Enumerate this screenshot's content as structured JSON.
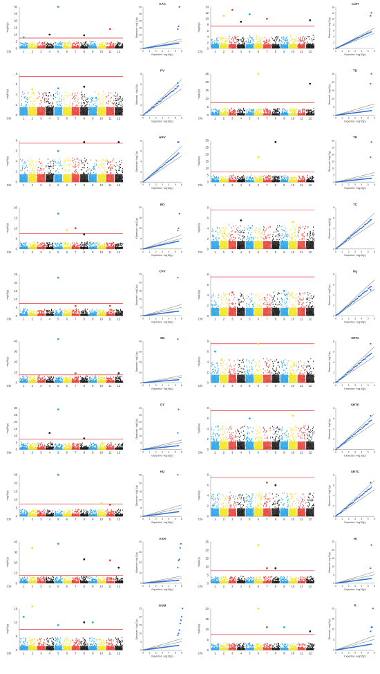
{
  "figure": {
    "chr_label": "Chr",
    "manhattan_ylabel": "−log10(p)",
    "qq_xlabel": "Expected −log10(p)",
    "qq_ylabel": "Observed −log10(p)",
    "chromosomes": [
      "1",
      "2",
      "3",
      "4",
      "5",
      "6",
      "7",
      "8",
      "9",
      "10",
      "11",
      "12"
    ],
    "chromosome_colors": [
      "#29a3e6",
      "#f3e51e",
      "#e8423a",
      "#1a1a1a"
    ],
    "threshold_color": "#e2333b",
    "qq_point_color": "#2a70d6",
    "qq_line_color": "#8c8c8c"
  },
  "chart_data": [
    {
      "type": "scatter",
      "kind": "manhattan",
      "trait": "AAC",
      "ylim": [
        0,
        30
      ],
      "yticks": [
        0,
        5,
        10,
        15,
        20,
        25,
        30
      ],
      "threshold": 7.5,
      "peaks": [
        {
          "chr": 5,
          "y": 30
        },
        {
          "chr": 8,
          "y": 9.5
        },
        {
          "chr": 11,
          "y": 14
        },
        {
          "chr": 1,
          "y": 8
        },
        {
          "chr": 4,
          "y": 10
        }
      ]
    },
    {
      "type": "scatter",
      "kind": "qq",
      "trait": "AAC",
      "xlim": [
        0,
        6
      ],
      "ylim": [
        0,
        30
      ],
      "yticks": [
        0,
        5,
        10,
        15,
        20,
        25,
        30
      ],
      "xticks": [
        0,
        1,
        2,
        3,
        4,
        5,
        6
      ],
      "tail": [
        14,
        16,
        30
      ],
      "bend": 4
    },
    {
      "type": "scatter",
      "kind": "manhattan",
      "trait": "COH",
      "ylim": [
        0,
        14
      ],
      "yticks": [
        0,
        2,
        4,
        6,
        8,
        10,
        12,
        14
      ],
      "threshold": 7.5,
      "peaks": [
        {
          "chr": 2,
          "y": 11
        },
        {
          "chr": 3,
          "y": 13
        },
        {
          "chr": 4,
          "y": 9
        },
        {
          "chr": 5,
          "y": 11.5
        },
        {
          "chr": 7,
          "y": 10
        },
        {
          "chr": 12,
          "y": 9.5
        }
      ]
    },
    {
      "type": "scatter",
      "kind": "qq",
      "trait": "COH",
      "xlim": [
        0,
        6
      ],
      "ylim": [
        0,
        14
      ],
      "yticks": [
        0,
        2,
        4,
        6,
        8,
        10,
        12,
        14
      ],
      "xticks": [
        0,
        1,
        2,
        3,
        4,
        5,
        6
      ],
      "tail": [
        11,
        12
      ],
      "bend": 6
    },
    {
      "type": "scatter",
      "kind": "manhattan",
      "trait": "PV",
      "ylim": [
        0,
        8
      ],
      "yticks": [
        0,
        2,
        4,
        6,
        8
      ],
      "threshold": 7.5,
      "peaks": [
        {
          "chr": 8,
          "y": 5.5
        },
        {
          "chr": 2,
          "y": 5
        },
        {
          "chr": 5,
          "y": 5.2
        }
      ]
    },
    {
      "type": "scatter",
      "kind": "qq",
      "trait": "PV",
      "xlim": [
        0,
        6
      ],
      "ylim": [
        0,
        8
      ],
      "yticks": [
        0,
        2,
        4,
        6,
        8
      ],
      "xticks": [
        0,
        1,
        2,
        3,
        4,
        5,
        6
      ],
      "tail": [
        6.2
      ],
      "bend": 6
    },
    {
      "type": "scatter",
      "kind": "manhattan",
      "trait": "TD",
      "ylim": [
        0,
        25
      ],
      "yticks": [
        0,
        5,
        10,
        15,
        20,
        25
      ],
      "threshold": 7.5,
      "peaks": [
        {
          "chr": 6,
          "y": 25
        },
        {
          "chr": 12,
          "y": 19
        }
      ]
    },
    {
      "type": "scatter",
      "kind": "qq",
      "trait": "TD",
      "xlim": [
        0,
        6
      ],
      "ylim": [
        0,
        25
      ],
      "yticks": [
        0,
        5,
        10,
        15,
        20,
        25
      ],
      "xticks": [
        0,
        1,
        2,
        3,
        4,
        5,
        6
      ],
      "tail": [
        19,
        25
      ],
      "bend": 3
    },
    {
      "type": "scatter",
      "kind": "manhattan",
      "trait": "HPV",
      "ylim": [
        0,
        8
      ],
      "yticks": [
        0,
        2,
        4,
        6,
        8
      ],
      "threshold": 7.5,
      "peaks": [
        {
          "chr": 8,
          "y": 7.7
        },
        {
          "chr": 12,
          "y": 7.7
        },
        {
          "chr": 5,
          "y": 6
        }
      ]
    },
    {
      "type": "scatter",
      "kind": "qq",
      "trait": "HPV",
      "xlim": [
        0,
        6
      ],
      "ylim": [
        0,
        8
      ],
      "yticks": [
        0,
        2,
        4,
        6,
        8
      ],
      "xticks": [
        0,
        1,
        2,
        3,
        4,
        5,
        6
      ],
      "tail": [
        7.7,
        7.7
      ],
      "bend": 6
    },
    {
      "type": "scatter",
      "kind": "manhattan",
      "trait": "TP",
      "ylim": [
        0,
        30
      ],
      "yticks": [
        0,
        5,
        10,
        15,
        20,
        25,
        30
      ],
      "threshold": 7.5,
      "peaks": [
        {
          "chr": 8,
          "y": 29
        },
        {
          "chr": 6,
          "y": 18
        }
      ]
    },
    {
      "type": "scatter",
      "kind": "qq",
      "trait": "TP",
      "xlim": [
        0,
        6
      ],
      "ylim": [
        0,
        30
      ],
      "yticks": [
        0,
        5,
        10,
        15,
        20,
        25,
        30
      ],
      "xticks": [
        0,
        1,
        2,
        3,
        4,
        5,
        6
      ],
      "tail": [
        18,
        29
      ],
      "bend": 3
    },
    {
      "type": "scatter",
      "kind": "manhattan",
      "trait": "BD",
      "ylim": [
        0,
        20
      ],
      "yticks": [
        0,
        5,
        10,
        15,
        20
      ],
      "threshold": 7.5,
      "peaks": [
        {
          "chr": 5,
          "y": 17
        },
        {
          "chr": 6,
          "y": 9
        },
        {
          "chr": 7,
          "y": 10
        },
        {
          "chr": 8,
          "y": 7
        }
      ]
    },
    {
      "type": "scatter",
      "kind": "qq",
      "trait": "BD",
      "xlim": [
        0,
        6
      ],
      "ylim": [
        0,
        20
      ],
      "yticks": [
        0,
        5,
        10,
        15,
        20
      ],
      "xticks": [
        0,
        1,
        2,
        3,
        4,
        5,
        6
      ],
      "tail": [
        9,
        10,
        17
      ],
      "bend": 4
    },
    {
      "type": "scatter",
      "kind": "manhattan",
      "trait": "TC",
      "ylim": [
        0,
        8
      ],
      "yticks": [
        0,
        2,
        4,
        6,
        8
      ],
      "threshold": 7.5,
      "peaks": [
        {
          "chr": 4,
          "y": 5.5
        },
        {
          "chr": 10,
          "y": 5.2
        }
      ]
    },
    {
      "type": "scatter",
      "kind": "qq",
      "trait": "TC",
      "xlim": [
        0,
        6
      ],
      "ylim": [
        0,
        8
      ],
      "yticks": [
        0,
        2,
        4,
        6,
        8
      ],
      "xticks": [
        0,
        1,
        2,
        3,
        4,
        5,
        6
      ],
      "tail": [
        5.6
      ],
      "bend": 6
    },
    {
      "type": "scatter",
      "kind": "manhattan",
      "trait": "CPV",
      "ylim": [
        0,
        25
      ],
      "yticks": [
        0,
        5,
        10,
        15,
        20,
        25
      ],
      "threshold": 7.5,
      "peaks": [
        {
          "chr": 5,
          "y": 23
        },
        {
          "chr": 7,
          "y": 6
        },
        {
          "chr": 11,
          "y": 6
        }
      ]
    },
    {
      "type": "scatter",
      "kind": "qq",
      "trait": "CPV",
      "xlim": [
        0,
        6
      ],
      "ylim": [
        0,
        25
      ],
      "yticks": [
        0,
        5,
        10,
        15,
        20,
        25
      ],
      "xticks": [
        0,
        1,
        2,
        3,
        4,
        5,
        6
      ],
      "tail": [
        23
      ],
      "bend": 3
    },
    {
      "type": "scatter",
      "kind": "manhattan",
      "trait": "Hg",
      "ylim": [
        0,
        8
      ],
      "yticks": [
        0,
        2,
        4,
        6,
        8
      ],
      "threshold": 7.5,
      "peaks": [
        {
          "chr": 3,
          "y": 4.5
        },
        {
          "chr": 9,
          "y": 4.8
        }
      ]
    },
    {
      "type": "scatter",
      "kind": "qq",
      "trait": "Hg",
      "xlim": [
        0,
        6
      ],
      "ylim": [
        0,
        8
      ],
      "yticks": [
        0,
        2,
        4,
        6,
        8
      ],
      "xticks": [
        0,
        1,
        2,
        3,
        4,
        5,
        6
      ],
      "tail": [
        5
      ],
      "bend": 6
    },
    {
      "type": "scatter",
      "kind": "manhattan",
      "trait": "SB",
      "ylim": [
        0,
        40
      ],
      "yticks": [
        0,
        10,
        20,
        30,
        40
      ],
      "threshold": 7.5,
      "peaks": [
        {
          "chr": 5,
          "y": 42
        },
        {
          "chr": 7,
          "y": 9
        },
        {
          "chr": 12,
          "y": 9
        }
      ]
    },
    {
      "type": "scatter",
      "kind": "qq",
      "trait": "SB",
      "xlim": [
        0,
        6
      ],
      "ylim": [
        0,
        40
      ],
      "yticks": [
        0,
        10,
        20,
        30,
        40
      ],
      "xticks": [
        0,
        1,
        2,
        3,
        4,
        5,
        6
      ],
      "tail": [
        42
      ],
      "bend": 3
    },
    {
      "type": "scatter",
      "kind": "manhattan",
      "trait": "SRTo",
      "ylim": [
        0,
        8
      ],
      "yticks": [
        0,
        2,
        4,
        6,
        8
      ],
      "threshold": 7.5,
      "peaks": [
        {
          "chr": 6,
          "y": 7.5
        },
        {
          "chr": 1,
          "y": 6
        }
      ]
    },
    {
      "type": "scatter",
      "kind": "qq",
      "trait": "SRTo",
      "xlim": [
        0,
        6
      ],
      "ylim": [
        0,
        8
      ],
      "yticks": [
        0,
        2,
        4,
        6,
        8
      ],
      "xticks": [
        0,
        1,
        2,
        3,
        4,
        5,
        6
      ],
      "tail": [
        7.5
      ],
      "bend": 6
    },
    {
      "type": "scatter",
      "kind": "manhattan",
      "trait": "PT",
      "ylim": [
        0,
        30
      ],
      "yticks": [
        0,
        5,
        10,
        15,
        20,
        25,
        30
      ],
      "threshold": 7.5,
      "peaks": [
        {
          "chr": 5,
          "y": 29
        },
        {
          "chr": 4,
          "y": 12
        },
        {
          "chr": 8,
          "y": 8
        }
      ]
    },
    {
      "type": "scatter",
      "kind": "qq",
      "trait": "PT",
      "xlim": [
        0,
        6
      ],
      "ylim": [
        0,
        30
      ],
      "yticks": [
        0,
        5,
        10,
        15,
        20,
        25,
        30
      ],
      "xticks": [
        0,
        1,
        2,
        3,
        4,
        5,
        6
      ],
      "tail": [
        12,
        29
      ],
      "bend": 3
    },
    {
      "type": "scatter",
      "kind": "manhattan",
      "trait": "SRTP",
      "ylim": [
        0,
        8
      ],
      "yticks": [
        0,
        2,
        4,
        6,
        8
      ],
      "threshold": 7.5,
      "peaks": [
        {
          "chr": 5,
          "y": 6
        },
        {
          "chr": 10,
          "y": 6.5
        }
      ]
    },
    {
      "type": "scatter",
      "kind": "qq",
      "trait": "SRTP",
      "xlim": [
        0,
        6
      ],
      "ylim": [
        0,
        8
      ],
      "yticks": [
        0,
        2,
        4,
        6,
        8
      ],
      "xticks": [
        0,
        1,
        2,
        3,
        4,
        5,
        6
      ],
      "tail": [
        6.5
      ],
      "bend": 6
    },
    {
      "type": "scatter",
      "kind": "manhattan",
      "trait": "HD",
      "ylim": [
        0,
        25
      ],
      "yticks": [
        0,
        5,
        10,
        15,
        20,
        25
      ],
      "threshold": 7.5,
      "peaks": [
        {
          "chr": 5,
          "y": 25
        },
        {
          "chr": 10,
          "y": 8
        },
        {
          "chr": 11,
          "y": 7
        }
      ]
    },
    {
      "type": "scatter",
      "kind": "qq",
      "trait": "HD",
      "xlim": [
        0,
        6
      ],
      "ylim": [
        0,
        25
      ],
      "yticks": [
        0,
        5,
        10,
        15,
        20,
        25
      ],
      "xticks": [
        0,
        1,
        2,
        3,
        4,
        5,
        6
      ],
      "tail": [
        25
      ],
      "bend": 3
    },
    {
      "type": "scatter",
      "kind": "manhattan",
      "trait": "SRTC",
      "ylim": [
        0,
        8
      ],
      "yticks": [
        0,
        2,
        4,
        6,
        8
      ],
      "threshold": 7.5,
      "peaks": [
        {
          "chr": 7,
          "y": 6.5
        },
        {
          "chr": 8,
          "y": 6
        }
      ]
    },
    {
      "type": "scatter",
      "kind": "qq",
      "trait": "SRTC",
      "xlim": [
        0,
        6
      ],
      "ylim": [
        0,
        8
      ],
      "yticks": [
        0,
        2,
        4,
        6,
        8
      ],
      "xticks": [
        0,
        1,
        2,
        3,
        4,
        5,
        6
      ],
      "tail": [
        6.5
      ],
      "bend": 6
    },
    {
      "type": "scatter",
      "kind": "manhattan",
      "trait": "ASH",
      "ylim": [
        0,
        40
      ],
      "yticks": [
        0,
        10,
        20,
        30,
        40
      ],
      "threshold": 7.5,
      "peaks": [
        {
          "chr": 2,
          "y": 34
        },
        {
          "chr": 5,
          "y": 38
        },
        {
          "chr": 8,
          "y": 23
        },
        {
          "chr": 11,
          "y": 22
        },
        {
          "chr": 12,
          "y": 15
        }
      ]
    },
    {
      "type": "scatter",
      "kind": "qq",
      "trait": "ASH",
      "xlim": [
        0,
        6
      ],
      "ylim": [
        0,
        40
      ],
      "yticks": [
        0,
        10,
        20,
        30,
        40
      ],
      "xticks": [
        0,
        1,
        2,
        3,
        4,
        5,
        6
      ],
      "tail": [
        15,
        22,
        23,
        34,
        38
      ],
      "bend": 3
    },
    {
      "type": "scatter",
      "kind": "manhattan",
      "trait": "Ht",
      "ylim": [
        0,
        25
      ],
      "yticks": [
        0,
        5,
        10,
        15,
        20,
        25
      ],
      "threshold": 7.5,
      "peaks": [
        {
          "chr": 6,
          "y": 23
        },
        {
          "chr": 7,
          "y": 9
        },
        {
          "chr": 8,
          "y": 9
        }
      ]
    },
    {
      "type": "scatter",
      "kind": "qq",
      "trait": "Ht",
      "xlim": [
        0,
        6
      ],
      "ylim": [
        0,
        25
      ],
      "yticks": [
        0,
        5,
        10,
        15,
        20,
        25
      ],
      "xticks": [
        0,
        1,
        2,
        3,
        4,
        5,
        6
      ],
      "tail": [
        9,
        23
      ],
      "bend": 3
    },
    {
      "type": "scatter",
      "kind": "manhattan",
      "trait": "GUM",
      "ylim": [
        0,
        15
      ],
      "yticks": [
        0,
        5,
        10,
        15
      ],
      "threshold": 7.5,
      "peaks": [
        {
          "chr": 2,
          "y": 16
        },
        {
          "chr": 1,
          "y": 12
        },
        {
          "chr": 5,
          "y": 9
        },
        {
          "chr": 8,
          "y": 10
        },
        {
          "chr": 9,
          "y": 10
        }
      ]
    },
    {
      "type": "scatter",
      "kind": "qq",
      "trait": "GUM",
      "xlim": [
        0,
        6
      ],
      "ylim": [
        0,
        25
      ],
      "yticks": [
        0,
        5,
        10,
        15,
        20,
        25
      ],
      "xticks": [
        0,
        1,
        2,
        3,
        4,
        5,
        6
      ],
      "tail": [
        9,
        10,
        12,
        16,
        18,
        20,
        25
      ],
      "bend": 3
    },
    {
      "type": "scatter",
      "kind": "manhattan",
      "trait": "R",
      "ylim": [
        0,
        20
      ],
      "yticks": [
        0,
        5,
        10,
        15,
        20
      ],
      "threshold": 7.5,
      "peaks": [
        {
          "chr": 6,
          "y": 20
        },
        {
          "chr": 7,
          "y": 11
        },
        {
          "chr": 9,
          "y": 11
        },
        {
          "chr": 12,
          "y": 9
        }
      ]
    },
    {
      "type": "scatter",
      "kind": "qq",
      "trait": "R",
      "xlim": [
        0,
        6
      ],
      "ylim": [
        0,
        20
      ],
      "yticks": [
        0,
        5,
        10,
        15,
        20
      ],
      "xticks": [
        0,
        1,
        2,
        3,
        4,
        5,
        6
      ],
      "tail": [
        9,
        11,
        11,
        20
      ],
      "bend": 3
    }
  ]
}
